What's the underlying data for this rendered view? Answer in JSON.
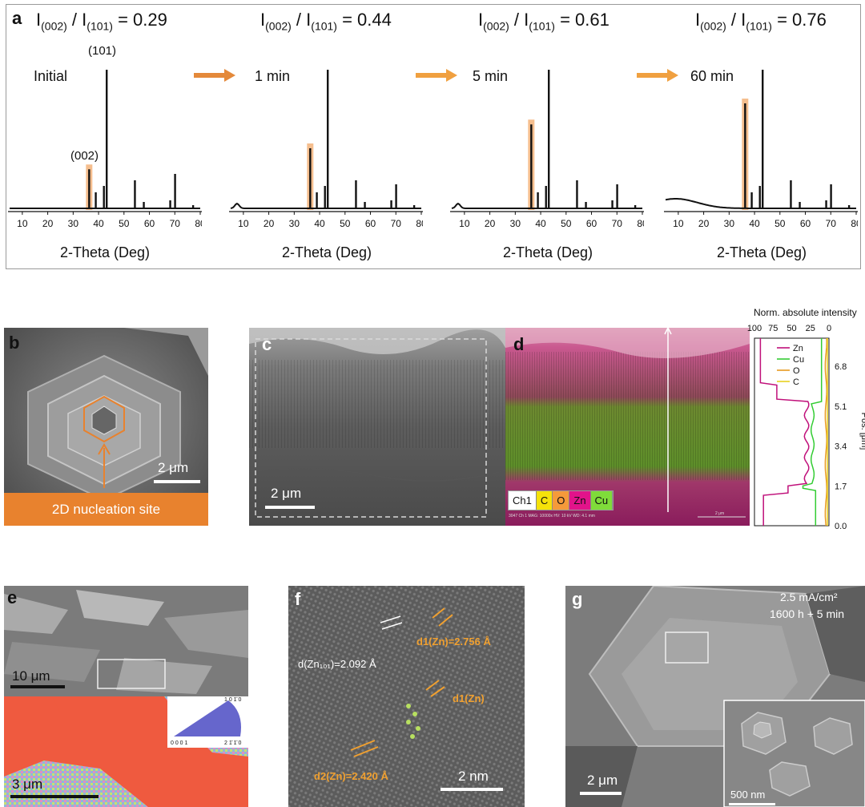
{
  "panel_a": {
    "label": "a",
    "ratio_text_prefix": "I",
    "ratio_sub_1": "(002)",
    "ratio_sub_2": "(101)",
    "ratio_values": [
      "= 0.29",
      "= 0.44",
      "= 0.61",
      "= 0.76"
    ],
    "time_labels": [
      "Initial",
      "1 min",
      "5 min",
      "60 min"
    ],
    "peak_labels": [
      "(101)",
      "(002)"
    ],
    "x_axis_label": "2-Theta (Deg)",
    "x_ticks": [
      "10",
      "20",
      "30",
      "40",
      "50",
      "60",
      "70",
      "80"
    ],
    "arrow_color": "#f0a040",
    "highlight_color": "#f3b37a"
  },
  "chart_data": [
    {
      "type": "line",
      "title": "Initial",
      "xlabel": "2-Theta (Deg)",
      "xlim": [
        5,
        80
      ],
      "ratio_002_101": 0.29,
      "peaks": [
        {
          "x": 36.3,
          "rel_intensity": 0.29
        },
        {
          "x": 39.0,
          "rel_intensity": 0.12
        },
        {
          "x": 43.2,
          "rel_intensity": 1.0
        },
        {
          "x": 54.3,
          "rel_intensity": 0.2
        },
        {
          "x": 70.1,
          "rel_intensity": 0.25
        }
      ]
    },
    {
      "type": "line",
      "title": "1 min",
      "xlabel": "2-Theta (Deg)",
      "xlim": [
        5,
        80
      ],
      "ratio_002_101": 0.44
    },
    {
      "type": "line",
      "title": "5 min",
      "xlabel": "2-Theta (Deg)",
      "xlim": [
        5,
        80
      ],
      "ratio_002_101": 0.61
    },
    {
      "type": "line",
      "title": "60 min",
      "xlabel": "2-Theta (Deg)",
      "xlim": [
        5,
        80
      ],
      "ratio_002_101": 0.76
    }
  ],
  "panel_b": {
    "label": "b",
    "scale": "2 μm",
    "banner": "2D nucleation site",
    "banner_color": "#e8822e"
  },
  "panel_c": {
    "label": "c",
    "scale": "2 μm"
  },
  "panel_d": {
    "label": "d",
    "legend": [
      "Ch1",
      "C",
      "O",
      "Zn",
      "Cu"
    ],
    "legend_colors": [
      "#ffffff",
      "#f5e20a",
      "#f59a3a",
      "#e2138a",
      "#7fdc3a"
    ],
    "footer": "3047   Ch 1   MAG: 10000x   HV: 10 kV   WD: 4.1 mm",
    "scale": "2 μm"
  },
  "profile": {
    "title": "Norm. absolute intensity",
    "x_ticks": [
      "100",
      "75",
      "50",
      "25",
      "0"
    ],
    "y_ticks": [
      "6.8",
      "5.1",
      "3.4",
      "1.7",
      "0.0"
    ],
    "y_label": "Pos. [μm]",
    "series": [
      "Zn",
      "Cu",
      "O",
      "C"
    ],
    "series_colors": [
      "#c0107a",
      "#33cc33",
      "#e89a20",
      "#e8d020"
    ]
  },
  "panel_e": {
    "label": "e",
    "scale_top": "10 μm",
    "scale_bottom": "3 μm",
    "ipf_labels": [
      "1 0 1̄ 0",
      "0 0 0 1",
      "2 1̄ 1̄ 0"
    ]
  },
  "panel_f": {
    "label": "f",
    "d_zn101": "d(Zn₁₀₁)=2.092 Å",
    "d1_a": "d1(Zn)=2.756 Å",
    "d1_b": "d1(Zn)",
    "d2": "d2(Zn)=2.420 Å",
    "scale": "2 nm",
    "accent": "#f0a030"
  },
  "panel_g": {
    "label": "g",
    "current": "2.5 mA/cm²",
    "time": "1600 h + 5 min",
    "scale": "2 μm",
    "inset_scale": "500 nm"
  }
}
